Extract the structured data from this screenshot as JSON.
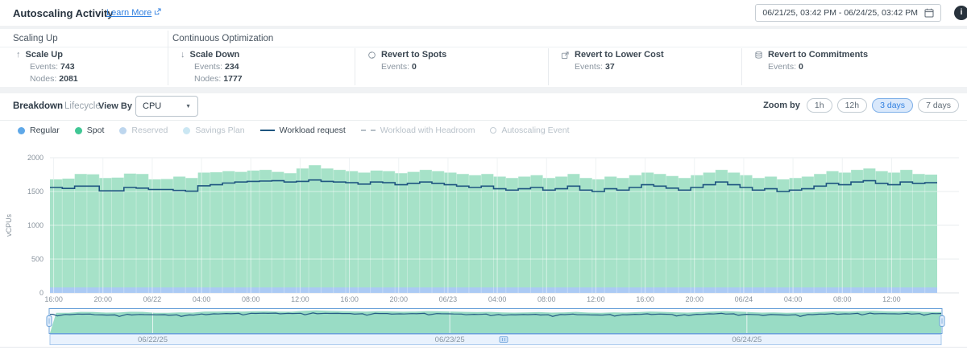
{
  "header": {
    "title": "Autoscaling Activity",
    "learn_more_label": "Learn More",
    "date_range": "06/21/25, 03:42 PM - 06/24/25, 03:42 PM",
    "info_icon": "info-circle-icon"
  },
  "cards": {
    "groups": [
      {
        "label": "Scaling Up"
      },
      {
        "label": "Continuous Optimization"
      }
    ],
    "stats": [
      {
        "title": "Scale Up",
        "icon": "arrow-up-icon",
        "metrics": [
          {
            "label": "Events:",
            "value": "743"
          },
          {
            "label": "Nodes:",
            "value": "2081"
          }
        ]
      },
      {
        "title": "Scale Down",
        "icon": "arrow-down-icon",
        "metrics": [
          {
            "label": "Events:",
            "value": "234"
          },
          {
            "label": "Nodes:",
            "value": "1777"
          }
        ]
      },
      {
        "title": "Revert to Spots",
        "icon": "revert-spots-icon",
        "metrics": [
          {
            "label": "Events:",
            "value": "0"
          }
        ]
      },
      {
        "title": "Revert to Lower Cost",
        "icon": "revert-lower-cost-icon",
        "metrics": [
          {
            "label": "Events:",
            "value": "37"
          }
        ]
      },
      {
        "title": "Revert to Commitments",
        "icon": "revert-commitments-icon",
        "metrics": [
          {
            "label": "Events:",
            "value": "0"
          }
        ]
      }
    ]
  },
  "toolbar": {
    "tabs": [
      {
        "label": "Breakdown",
        "active": true
      },
      {
        "label": "Lifecycle",
        "active": false
      }
    ],
    "view_by_label": "View By",
    "view_by_value": "CPU",
    "zoom_by_label": "Zoom by",
    "zoom_options": [
      {
        "label": "1h",
        "selected": false
      },
      {
        "label": "12h",
        "selected": false
      },
      {
        "label": "3 days",
        "selected": true
      },
      {
        "label": "7 days",
        "selected": false
      }
    ]
  },
  "legend": [
    {
      "label": "Regular",
      "swatch": "dot",
      "color": "#5fa8e8",
      "active": true
    },
    {
      "label": "Spot",
      "swatch": "dot",
      "color": "#41c795",
      "active": true
    },
    {
      "label": "Reserved",
      "swatch": "dot",
      "color": "#bdd6ee",
      "active": false
    },
    {
      "label": "Savings Plan",
      "swatch": "dot",
      "color": "#cbe7f3",
      "active": false
    },
    {
      "label": "Workload request",
      "swatch": "line",
      "color": "#1e5580",
      "active": true
    },
    {
      "label": "Workload with Headroom",
      "swatch": "dashed",
      "color": "#b6bfc7",
      "active": false
    },
    {
      "label": "Autoscaling Event",
      "swatch": "circle",
      "color": "#c3ccd4",
      "active": false
    }
  ],
  "chart_data": {
    "type": "area",
    "ylabel": "vCPUs",
    "ylim": [
      0,
      2000
    ],
    "yticks": [
      0,
      500,
      1000,
      1500,
      2000
    ],
    "x_span_hours": 72,
    "first_tick_offset_hours": 0.3,
    "tick_interval_hours": 4,
    "xticks": [
      "16:00",
      "20:00",
      "06/22",
      "04:00",
      "08:00",
      "12:00",
      "16:00",
      "20:00",
      "06/23",
      "04:00",
      "08:00",
      "12:00",
      "16:00",
      "20:00",
      "06/24",
      "04:00",
      "08:00",
      "12:00"
    ],
    "series": [
      {
        "name": "Regular",
        "type": "area",
        "color": "#abcaf4",
        "constant_value": 80
      },
      {
        "name": "Spot",
        "type": "area",
        "color": "#a6e2c8",
        "note": "values are stacked totals (Regular + Spot), hourly steps",
        "values": [
          1680,
          1690,
          1760,
          1755,
          1700,
          1705,
          1765,
          1760,
          1680,
          1685,
          1720,
          1700,
          1780,
          1785,
          1800,
          1790,
          1810,
          1820,
          1790,
          1770,
          1840,
          1890,
          1840,
          1820,
          1800,
          1780,
          1810,
          1800,
          1770,
          1790,
          1820,
          1800,
          1780,
          1760,
          1740,
          1760,
          1720,
          1700,
          1720,
          1740,
          1700,
          1720,
          1760,
          1700,
          1680,
          1720,
          1700,
          1740,
          1780,
          1760,
          1730,
          1700,
          1740,
          1780,
          1820,
          1780,
          1740,
          1700,
          1720,
          1680,
          1700,
          1720,
          1760,
          1800,
          1780,
          1820,
          1840,
          1800,
          1780,
          1820,
          1760,
          1750
        ]
      },
      {
        "name": "Workload request",
        "type": "step_line",
        "color": "#1e5580",
        "values": [
          1560,
          1545,
          1580,
          1580,
          1510,
          1510,
          1560,
          1550,
          1530,
          1530,
          1515,
          1505,
          1585,
          1600,
          1625,
          1640,
          1650,
          1655,
          1660,
          1640,
          1650,
          1670,
          1650,
          1640,
          1630,
          1610,
          1640,
          1630,
          1600,
          1620,
          1640,
          1620,
          1600,
          1580,
          1560,
          1580,
          1540,
          1520,
          1540,
          1560,
          1520,
          1540,
          1580,
          1520,
          1500,
          1540,
          1520,
          1560,
          1600,
          1580,
          1550,
          1520,
          1560,
          1600,
          1640,
          1600,
          1560,
          1520,
          1540,
          1500,
          1520,
          1540,
          1580,
          1620,
          1600,
          1640,
          1660,
          1620,
          1600,
          1640,
          1620,
          1630
        ]
      }
    ]
  },
  "minimap": {
    "date_labels": [
      "06/22/25",
      "06/23/25",
      "06/24/25"
    ],
    "day_start_hours": [
      8.3,
      32.3,
      56.3
    ]
  }
}
